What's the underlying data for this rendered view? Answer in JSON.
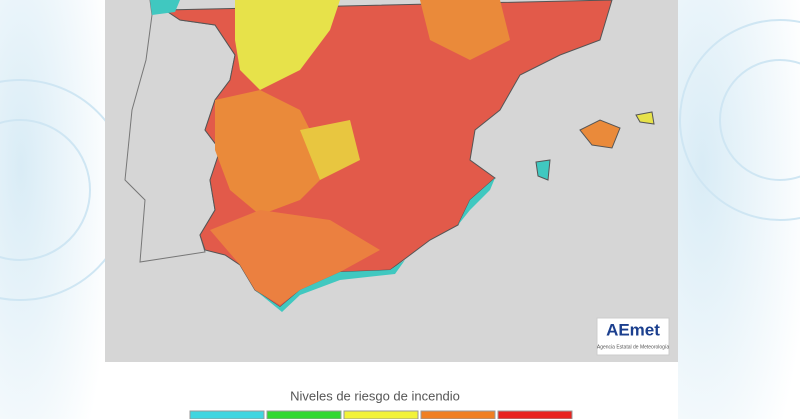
{
  "map": {
    "logo": {
      "name": "AEmet",
      "subtitle": "Agencia Estatal de Meteorología"
    }
  },
  "legend": {
    "title": "Niveles de riesgo de incendio",
    "colors": [
      "#3fd6e0",
      "#32d832",
      "#f2f23a",
      "#f07f22",
      "#e8231f"
    ]
  }
}
